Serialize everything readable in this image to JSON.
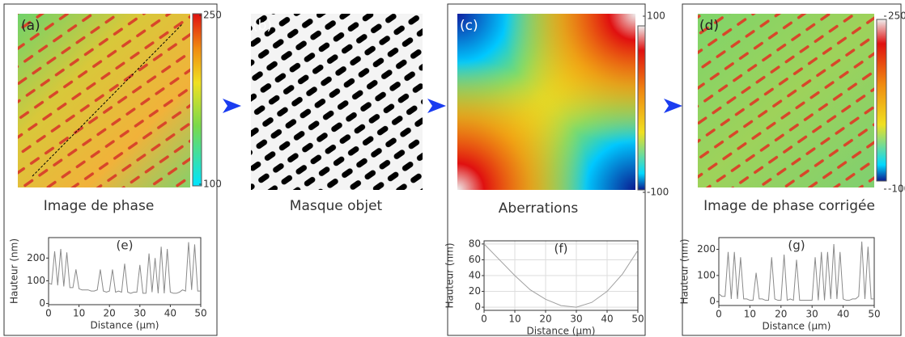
{
  "panels": [
    {
      "label": "(a)",
      "caption": "Image de phase",
      "colorbar_ticks": [
        250,
        100
      ]
    },
    {
      "label": "(b)",
      "caption": "Masque objet"
    },
    {
      "label": "(c)",
      "caption": "Aberrations",
      "colorbar_ticks": [
        100,
        -100
      ]
    },
    {
      "label": "(d)",
      "caption": "Image de phase corrigée",
      "colorbar_ticks": [
        250,
        -100
      ]
    }
  ],
  "chart_data": [
    {
      "type": "line",
      "label": "(e)",
      "x_label": "Distance (µm)",
      "y_label": "Hauteur (nm)",
      "grid": false,
      "x": [
        0,
        1,
        2,
        3,
        4,
        5,
        6,
        7,
        8,
        9,
        10,
        11,
        12,
        13,
        14,
        15,
        16,
        17,
        18,
        19,
        20,
        21,
        22,
        23,
        24,
        25,
        26,
        27,
        28,
        29,
        30,
        31,
        32,
        33,
        34,
        35,
        36,
        37,
        38,
        39,
        40,
        41,
        42,
        43,
        44,
        45,
        46,
        47,
        48,
        49,
        50
      ],
      "series": [
        {
          "color": "#8a8a8a",
          "values": [
            90,
            85,
            230,
            80,
            240,
            75,
            225,
            70,
            70,
            150,
            65,
            60,
            60,
            60,
            55,
            55,
            60,
            150,
            55,
            50,
            55,
            150,
            50,
            55,
            50,
            175,
            50,
            45,
            50,
            50,
            170,
            45,
            45,
            220,
            50,
            200,
            45,
            250,
            45,
            240,
            50,
            45,
            45,
            50,
            60,
            55,
            270,
            60,
            260,
            55,
            55
          ]
        }
      ],
      "xlim": [
        0,
        50
      ],
      "xticks": [
        0,
        10,
        20,
        30,
        40,
        50
      ],
      "ylim": [
        -5,
        290
      ],
      "yticks": [
        0,
        100,
        200
      ]
    },
    {
      "type": "line",
      "label": "(f)",
      "x_label": "Distance (µm)",
      "y_label": "Hauteur (nm)",
      "grid": true,
      "x": [
        0,
        5,
        10,
        15,
        20,
        25,
        30,
        35,
        40,
        45,
        50
      ],
      "series": [
        {
          "color": "#a0a0a0",
          "values": [
            80,
            60,
            40,
            22,
            10,
            2,
            0,
            6,
            20,
            42,
            72
          ]
        }
      ],
      "xlim": [
        0,
        50
      ],
      "xticks": [
        0,
        10,
        20,
        30,
        40,
        50
      ],
      "ylim": [
        -4,
        84
      ],
      "yticks": [
        0,
        20,
        40,
        60,
        80
      ]
    },
    {
      "type": "line",
      "label": "(g)",
      "x_label": "Distance (µm)",
      "y_label": "Hauteur (nm)",
      "grid": false,
      "x": [
        0,
        1,
        2,
        3,
        4,
        5,
        6,
        7,
        8,
        9,
        10,
        11,
        12,
        13,
        14,
        15,
        16,
        17,
        18,
        19,
        20,
        21,
        22,
        23,
        24,
        25,
        26,
        27,
        28,
        29,
        30,
        31,
        32,
        33,
        34,
        35,
        36,
        37,
        38,
        39,
        40,
        41,
        42,
        43,
        44,
        45,
        46,
        47,
        48,
        49,
        50
      ],
      "series": [
        {
          "color": "#8a8a8a",
          "values": [
            30,
            20,
            20,
            190,
            10,
            190,
            10,
            170,
            10,
            10,
            5,
            5,
            110,
            10,
            10,
            5,
            5,
            170,
            10,
            5,
            5,
            180,
            5,
            10,
            5,
            160,
            5,
            5,
            5,
            5,
            5,
            170,
            5,
            190,
            5,
            190,
            10,
            220,
            10,
            190,
            10,
            5,
            5,
            10,
            10,
            20,
            230,
            10,
            210,
            10,
            10
          ]
        }
      ],
      "xlim": [
        0,
        50
      ],
      "xticks": [
        0,
        10,
        20,
        30,
        40,
        50
      ],
      "ylim": [
        -15,
        245
      ],
      "yticks": [
        0,
        100,
        200
      ]
    }
  ]
}
